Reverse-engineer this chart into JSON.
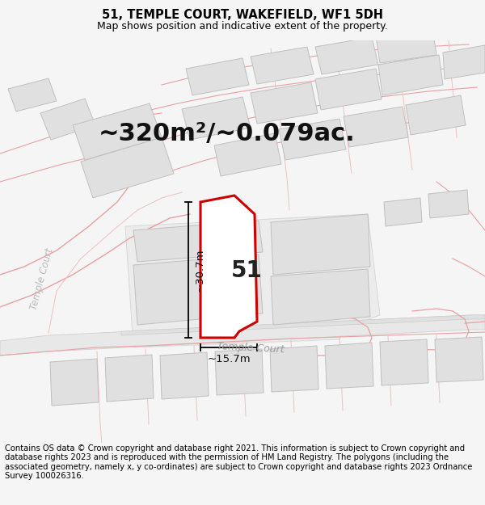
{
  "title": "51, TEMPLE COURT, WAKEFIELD, WF1 5DH",
  "subtitle": "Map shows position and indicative extent of the property.",
  "area_label": "~320m²/~0.079ac.",
  "number_label": "51",
  "dim_vertical": "~30.7m",
  "dim_horizontal": "~15.7m",
  "street_label": "Temple Court",
  "footer": "Contains OS data © Crown copyright and database right 2021. This information is subject to Crown copyright and database rights 2023 and is reproduced with the permission of HM Land Registry. The polygons (including the associated geometry, namely x, y co-ordinates) are subject to Crown copyright and database rights 2023 Ordnance Survey 100026316.",
  "bg_color": "#f5f5f5",
  "map_bg": "#ffffff",
  "building_fill": "#e0e0e0",
  "building_edge": "#c0c0c0",
  "highlight_fill": "#ffffff",
  "highlight_edge": "#cc0000",
  "pink_line": "#e8a0a0",
  "pink_line_thin": "#f0c0c0",
  "road_fill": "#f0f0f0",
  "road_edge": "#c8c8c8",
  "title_fontsize": 10.5,
  "subtitle_fontsize": 9,
  "area_fontsize": 22,
  "number_fontsize": 20,
  "footer_fontsize": 7.2,
  "street_label_fontsize": 9,
  "dim_label_fontsize": 9.5,
  "temple_court_label_fontsize": 8.5
}
